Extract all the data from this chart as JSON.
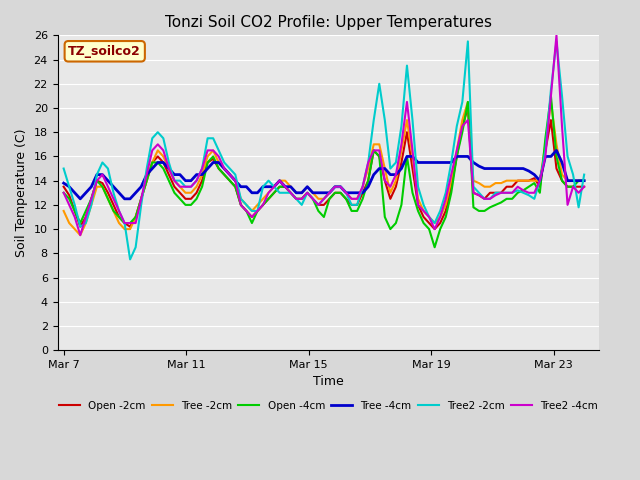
{
  "title": "Tonzi Soil CO2 Profile: Upper Temperatures",
  "xlabel": "Time",
  "ylabel": "Soil Temperature (C)",
  "ylim": [
    0,
    26
  ],
  "yticks": [
    0,
    2,
    4,
    6,
    8,
    10,
    12,
    14,
    16,
    18,
    20,
    22,
    24,
    26
  ],
  "legend_label": "TZ_soilco2",
  "legend_bg": "#ffffcc",
  "legend_border": "#cc6600",
  "series_names": [
    "Open -2cm",
    "Tree -2cm",
    "Open -4cm",
    "Tree -4cm",
    "Tree2 -2cm",
    "Tree2 -4cm"
  ],
  "series_colors": [
    "#cc0000",
    "#ff9900",
    "#00cc00",
    "#0000cc",
    "#00cccc",
    "#cc00cc"
  ],
  "series_lw": [
    1.5,
    1.5,
    1.5,
    2.0,
    1.5,
    1.5
  ],
  "xtick_pos": [
    0,
    4,
    8,
    12,
    16
  ],
  "xtick_labels": [
    "Mar 7",
    "Mar 11",
    "Mar 15",
    "Mar 19",
    "Mar 23"
  ],
  "open_2cm": [
    13.5,
    12.8,
    11.5,
    10.2,
    11.0,
    12.5,
    14.0,
    13.8,
    13.0,
    12.0,
    11.0,
    10.5,
    10.2,
    11.0,
    12.5,
    14.0,
    15.5,
    16.0,
    15.5,
    14.5,
    13.5,
    13.0,
    12.5,
    12.5,
    13.0,
    14.0,
    15.5,
    15.8,
    15.0,
    14.5,
    14.0,
    13.5,
    12.0,
    11.5,
    11.0,
    11.5,
    12.0,
    12.5,
    13.0,
    13.5,
    13.5,
    13.0,
    12.5,
    12.5,
    13.0,
    12.5,
    12.0,
    12.0,
    12.5,
    13.0,
    13.0,
    12.5,
    12.0,
    12.0,
    13.0,
    14.0,
    16.5,
    16.0,
    14.0,
    12.5,
    13.5,
    15.5,
    18.0,
    15.0,
    12.0,
    11.0,
    10.5,
    10.0,
    10.5,
    11.5,
    13.5,
    16.0,
    18.5,
    20.0,
    13.0,
    12.8,
    12.5,
    13.0,
    13.0,
    13.0,
    13.5,
    13.5,
    14.0,
    14.0,
    14.0,
    14.2,
    13.5,
    16.5,
    19.0,
    15.0,
    14.0,
    13.5,
    13.5,
    13.5,
    13.5
  ],
  "tree_2cm": [
    11.5,
    10.5,
    10.0,
    9.5,
    10.5,
    12.0,
    13.5,
    13.5,
    12.5,
    11.5,
    10.5,
    10.0,
    10.0,
    11.0,
    12.5,
    14.0,
    15.5,
    16.5,
    16.0,
    15.0,
    14.0,
    13.5,
    13.0,
    13.0,
    13.5,
    14.5,
    16.0,
    16.5,
    15.5,
    15.0,
    14.5,
    14.0,
    12.5,
    12.0,
    11.5,
    12.0,
    12.5,
    13.0,
    13.5,
    14.0,
    14.0,
    13.5,
    13.0,
    13.0,
    13.5,
    13.0,
    12.5,
    12.5,
    13.0,
    13.5,
    13.5,
    13.0,
    12.5,
    12.5,
    13.5,
    15.0,
    17.0,
    17.0,
    15.0,
    13.0,
    14.0,
    16.5,
    19.0,
    16.0,
    12.5,
    11.5,
    11.0,
    10.5,
    11.0,
    12.0,
    14.0,
    16.5,
    19.0,
    20.5,
    14.0,
    13.8,
    13.5,
    13.5,
    13.8,
    13.8,
    14.0,
    14.0,
    14.0,
    14.0,
    14.0,
    14.0,
    14.0,
    17.0,
    20.5,
    17.0,
    14.5,
    14.0,
    14.0,
    14.0,
    14.0
  ],
  "open_4cm": [
    13.0,
    12.5,
    11.5,
    10.5,
    11.5,
    12.5,
    14.0,
    13.5,
    12.5,
    11.5,
    11.0,
    10.5,
    10.5,
    11.0,
    12.5,
    14.0,
    15.5,
    15.5,
    15.0,
    14.0,
    13.0,
    12.5,
    12.0,
    12.0,
    12.5,
    13.5,
    15.5,
    16.0,
    15.0,
    14.5,
    14.0,
    13.5,
    12.0,
    11.5,
    10.5,
    11.5,
    12.0,
    12.5,
    13.0,
    13.5,
    13.5,
    13.0,
    12.5,
    12.5,
    13.0,
    12.5,
    11.5,
    11.0,
    12.5,
    13.0,
    13.0,
    12.5,
    11.5,
    11.5,
    12.5,
    14.0,
    16.5,
    16.0,
    11.0,
    10.0,
    10.5,
    12.0,
    16.0,
    13.0,
    11.5,
    10.5,
    10.0,
    8.5,
    10.0,
    11.0,
    13.0,
    16.0,
    18.0,
    20.5,
    11.8,
    11.5,
    11.5,
    11.8,
    12.0,
    12.2,
    12.5,
    12.5,
    13.0,
    13.2,
    13.5,
    13.8,
    13.0,
    17.5,
    21.0,
    16.0,
    14.0,
    13.5,
    13.5,
    14.0,
    14.0
  ],
  "tree_4cm": [
    13.8,
    13.5,
    13.0,
    12.5,
    13.0,
    13.5,
    14.5,
    14.5,
    14.0,
    13.5,
    13.0,
    12.5,
    12.5,
    13.0,
    13.5,
    14.5,
    15.0,
    15.5,
    15.5,
    15.0,
    14.5,
    14.5,
    14.0,
    14.0,
    14.5,
    14.5,
    15.0,
    15.5,
    15.5,
    15.0,
    14.5,
    14.0,
    13.5,
    13.5,
    13.0,
    13.0,
    13.5,
    13.5,
    13.5,
    14.0,
    13.5,
    13.5,
    13.0,
    13.0,
    13.5,
    13.0,
    13.0,
    13.0,
    13.0,
    13.5,
    13.5,
    13.0,
    13.0,
    13.0,
    13.0,
    13.5,
    14.5,
    15.0,
    15.0,
    14.5,
    14.5,
    15.0,
    16.0,
    16.0,
    15.5,
    15.5,
    15.5,
    15.5,
    15.5,
    15.5,
    15.5,
    16.0,
    16.0,
    16.0,
    15.5,
    15.2,
    15.0,
    15.0,
    15.0,
    15.0,
    15.0,
    15.0,
    15.0,
    15.0,
    14.8,
    14.5,
    14.0,
    16.0,
    16.0,
    16.5,
    15.5,
    14.0,
    14.0,
    14.0,
    14.0
  ],
  "tree2_2cm": [
    15.0,
    13.5,
    12.0,
    10.2,
    10.5,
    12.0,
    14.5,
    15.5,
    15.0,
    13.0,
    11.5,
    10.5,
    7.5,
    8.5,
    12.0,
    15.0,
    17.5,
    18.0,
    17.5,
    15.5,
    14.0,
    14.0,
    13.5,
    13.5,
    14.0,
    15.0,
    17.5,
    17.5,
    16.5,
    15.5,
    15.0,
    14.5,
    12.5,
    12.0,
    11.5,
    11.5,
    13.5,
    14.0,
    13.5,
    13.0,
    13.0,
    13.0,
    12.5,
    12.0,
    13.0,
    12.5,
    12.0,
    12.5,
    13.0,
    13.5,
    13.5,
    13.0,
    12.0,
    12.0,
    13.5,
    15.5,
    19.0,
    22.0,
    19.0,
    15.0,
    15.5,
    18.5,
    23.5,
    19.0,
    13.5,
    12.0,
    11.0,
    10.5,
    11.5,
    13.0,
    15.5,
    18.5,
    20.5,
    25.5,
    13.5,
    13.0,
    12.5,
    12.5,
    13.0,
    13.0,
    13.0,
    13.0,
    13.2,
    13.0,
    12.8,
    12.5,
    14.0,
    16.5,
    21.5,
    25.5,
    21.0,
    16.0,
    14.5,
    11.8,
    14.5
  ],
  "tree2_4cm": [
    13.0,
    12.0,
    11.0,
    9.5,
    11.0,
    12.5,
    14.0,
    14.5,
    13.5,
    12.5,
    11.5,
    10.5,
    10.5,
    10.5,
    12.5,
    14.5,
    16.5,
    17.0,
    16.5,
    15.0,
    14.0,
    13.5,
    13.5,
    13.5,
    14.0,
    15.0,
    16.5,
    16.5,
    16.0,
    15.0,
    14.5,
    14.0,
    12.0,
    11.5,
    11.0,
    11.5,
    12.0,
    13.0,
    13.5,
    14.0,
    13.5,
    13.0,
    12.5,
    12.5,
    13.0,
    12.5,
    12.0,
    12.5,
    13.0,
    13.5,
    13.5,
    13.0,
    12.5,
    12.5,
    13.5,
    15.5,
    16.5,
    16.5,
    14.0,
    13.5,
    14.5,
    17.0,
    20.5,
    16.5,
    12.0,
    11.5,
    11.0,
    10.0,
    11.0,
    12.5,
    14.5,
    16.5,
    18.5,
    19.0,
    13.0,
    12.8,
    12.5,
    12.5,
    12.8,
    13.0,
    13.0,
    13.0,
    13.5,
    13.2,
    13.0,
    13.0,
    14.0,
    16.0,
    21.0,
    26.0,
    18.5,
    12.0,
    13.5,
    13.0,
    13.5
  ]
}
